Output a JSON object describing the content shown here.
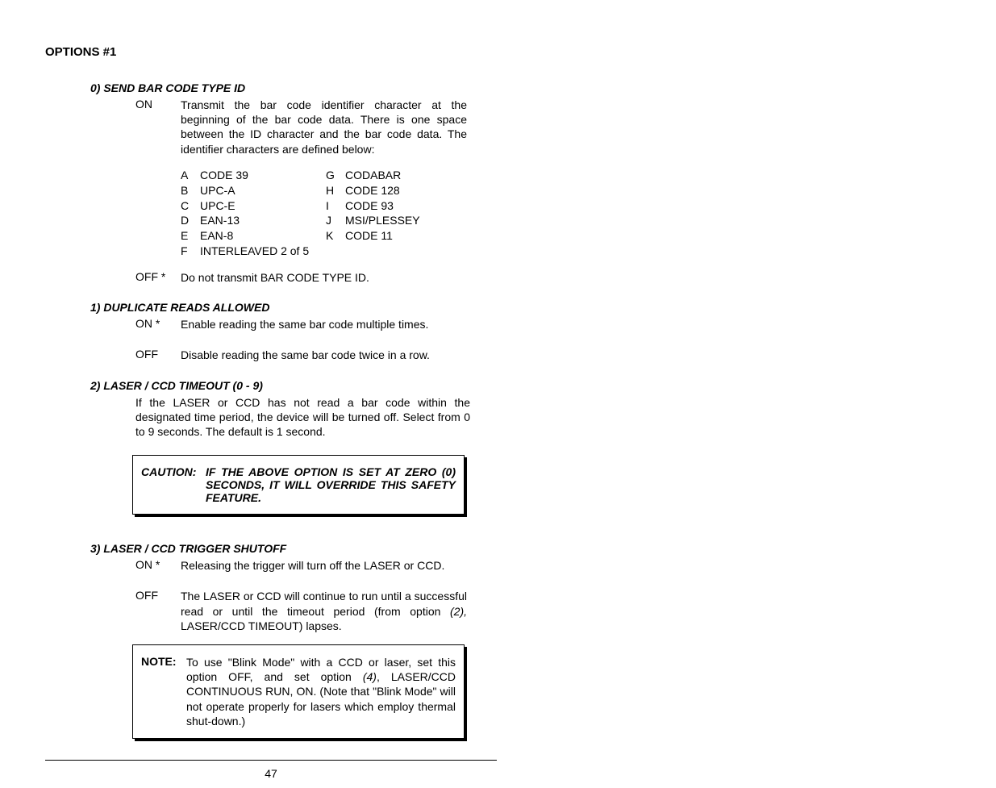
{
  "page_title": "OPTIONS #1",
  "sec0_heading": "0) SEND BAR CODE TYPE ID",
  "sec0_on_label": "ON",
  "sec0_on_text": "Transmit the bar code identifier character at the beginning of the bar code data.  There is one space between the ID character and the bar code data.  The identifier characters are defined below:",
  "id_a_l": "A",
  "id_a_n": "CODE 39",
  "id_b_l": "B",
  "id_b_n": "UPC-A",
  "id_c_l": "C",
  "id_c_n": "UPC-E",
  "id_d_l": "D",
  "id_d_n": "EAN-13",
  "id_e_l": "E",
  "id_e_n": "EAN-8",
  "id_f_l": "F",
  "id_f_n": "INTERLEAVED 2 of 5",
  "id_g_l": "G",
  "id_g_n": "CODABAR",
  "id_h_l": "H",
  "id_h_n": "CODE 128",
  "id_i_l": "I",
  "id_i_n": "CODE 93",
  "id_j_l": "J",
  "id_j_n": "MSI/PLESSEY",
  "id_k_l": "K",
  "id_k_n": "CODE 11",
  "sec0_off_label": "OFF *",
  "sec0_off_text": "Do not transmit BAR CODE TYPE ID.",
  "sec1_heading": "1) DUPLICATE READS ALLOWED",
  "sec1_on_label": "ON *",
  "sec1_on_text": "Enable reading the same bar code multiple times.",
  "sec1_off_label": "OFF",
  "sec1_off_text": "Disable reading the same bar code twice in a row.",
  "sec2_heading": "2) LASER / CCD TIMEOUT (0 - 9)",
  "sec2_body": "If the LASER or CCD has not read a bar code within the designated time period, the device will be turned off.  Select from 0 to 9 seconds. The default is 1 second.",
  "caution_label": "CAUTION:",
  "caution_text": "IF THE ABOVE OPTION IS SET AT ZERO (0) SECONDS, IT WILL OVERRIDE THIS SAFETY FEATURE.",
  "sec3_heading": "3) LASER / CCD TRIGGER SHUTOFF",
  "sec3_on_label": "ON *",
  "sec3_on_text": "Releasing the trigger will turn off the LASER or CCD.",
  "sec3_off_label": "OFF",
  "sec3_off_text_pre": "The LASER or CCD will continue to run until a successful read or until the timeout period (from option ",
  "sec3_off_ref": "(2),",
  "sec3_off_text_post": " LASER/CCD TIMEOUT) lapses.",
  "note_label": "NOTE:",
  "note_text_pre": "To use \"Blink Mode\" with a CCD or laser, set this option OFF, and set option ",
  "note_ref": "(4)",
  "note_text_post": ", LASER/CCD CONTINUOUS RUN, ON.  (Note that \"Blink Mode\" will not operate properly for lasers which employ  thermal shut-down.)",
  "page_number": "47"
}
